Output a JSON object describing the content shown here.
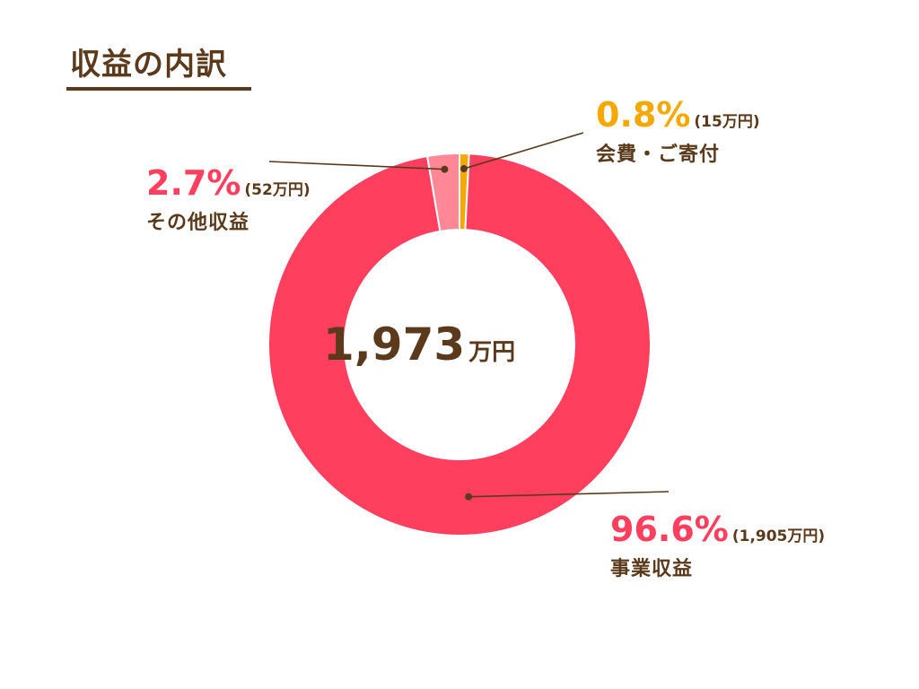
{
  "title": "収益の内訳",
  "center": {
    "value": "1,973",
    "unit": "万円"
  },
  "chart_data": {
    "type": "pie",
    "title": "収益の内訳",
    "total": "1,973万円",
    "slices": [
      {
        "name": "事業収益",
        "percent": 96.6,
        "percent_label": "96.6%",
        "amount_label": "(1,905万円)",
        "color": "#ff3f5d"
      },
      {
        "name": "その他収益",
        "percent": 2.7,
        "percent_label": "2.7%",
        "amount_label": "(52万円)",
        "color": "#ff8796"
      },
      {
        "name": "会費・ご寄付",
        "percent": 0.8,
        "percent_label": "0.8%",
        "amount_label": "(15万円)",
        "color": "#f5a800"
      }
    ]
  },
  "colors": {
    "text": "#5a3a1a",
    "main": "#ff3f5d",
    "other": "#ff8796",
    "fee": "#f5a800"
  }
}
